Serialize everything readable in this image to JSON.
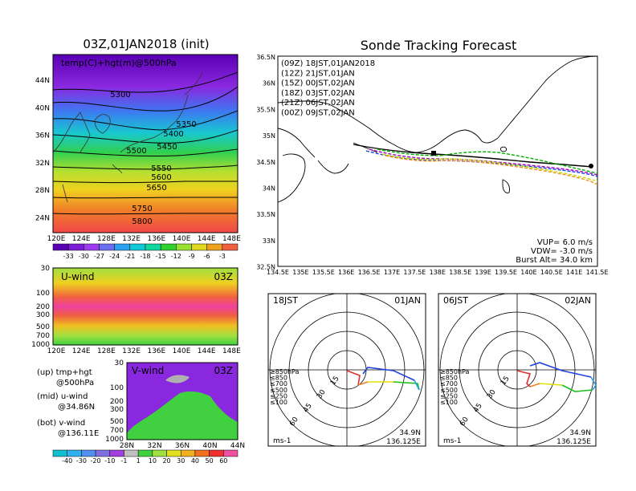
{
  "titles": {
    "map500": "03Z,01JAN2018 (init)",
    "main": "Sonde Tracking Forecast"
  },
  "map500": {
    "inner_label": "temp(C)+hgt(m)@500hPa",
    "lon_ticks": [
      "120E",
      "124E",
      "128E",
      "132E",
      "136E",
      "140E",
      "144E",
      "148E"
    ],
    "lat_ticks": [
      "44N",
      "40N",
      "36N",
      "32N",
      "28N",
      "24N"
    ],
    "contour_labels": [
      "5300",
      "5350",
      "5400",
      "5450",
      "5500",
      "5550",
      "5600",
      "5650",
      "5750",
      "5800"
    ],
    "colorbar_labels": [
      "-33",
      "-30",
      "-27",
      "-24",
      "-21",
      "-18",
      "-15",
      "-12",
      "-9",
      "-6",
      "-3"
    ],
    "colorbar_colors": [
      "#5a00b4",
      "#7a1cd6",
      "#9c3cf0",
      "#6a6ef0",
      "#2aa0f0",
      "#10c8d8",
      "#10d6a0",
      "#30d030",
      "#9ae030",
      "#e0d820",
      "#f0a020",
      "#f06040"
    ]
  },
  "uwind": {
    "label": "U-wind",
    "time": "03Z",
    "y_ticks": [
      "30",
      "100",
      "200",
      "300",
      "500",
      "700",
      "1000"
    ],
    "x_ticks": [
      "120E",
      "124E",
      "128E",
      "132E",
      "136E",
      "140E",
      "144E",
      "148E"
    ]
  },
  "vwind": {
    "label": "V-wind",
    "time": "03Z",
    "y_ticks": [
      "30",
      "100",
      "200",
      "300",
      "500",
      "700",
      "1000"
    ],
    "x_ticks": [
      "28N",
      "32N",
      "36N",
      "40N",
      "44N"
    ],
    "colorbar_labels": [
      "-40",
      "-30",
      "-20",
      "-10",
      "-1",
      "1",
      "10",
      "20",
      "30",
      "40",
      "50",
      "60"
    ],
    "colorbar_colors": [
      "#10c0d0",
      "#30b0f0",
      "#5090f0",
      "#8070e0",
      "#a040e0",
      "#c0c0c0",
      "#40d040",
      "#a0e040",
      "#e0e020",
      "#f0b020",
      "#f07020",
      "#f03030",
      "#f050a0"
    ]
  },
  "legend_notes": [
    "(up) tmp+hgt",
    "@500hPa",
    "(mid) u-wind",
    "@34.86N",
    "(bot) v-wind",
    "@136.11E"
  ],
  "tracking": {
    "x_ticks": [
      "134.5E",
      "135E",
      "135.5E",
      "136E",
      "136.5E",
      "137E",
      "137.5E",
      "138E",
      "138.5E",
      "139E",
      "139.5E",
      "140E",
      "140.5E",
      "141E",
      "141.5E"
    ],
    "y_ticks": [
      "36.5N",
      "36N",
      "35.5N",
      "35N",
      "34.5N",
      "34N",
      "33.5N",
      "33N",
      "32.5N"
    ],
    "legend": [
      {
        "text": "(09Z)  18JST,01JAN2018",
        "color": "#000000"
      },
      {
        "text": "(12Z)  21JST,01JAN",
        "color": "#a000c0"
      },
      {
        "text": "(15Z)  00JST,02JAN",
        "color": "#2040e0"
      },
      {
        "text": "(18Z)  03JST,02JAN",
        "color": "#00b000"
      },
      {
        "text": "(21Z)  06JST,02JAN",
        "color": "#c0e000"
      },
      {
        "text": "(00Z)  09JST,02JAN",
        "color": "#f09020"
      }
    ],
    "params": [
      "VUP=  6.0  m/s",
      "VDW=  -3.0  m/s",
      "Burst Alt=  34.0  km"
    ]
  },
  "hodo_left": {
    "time": "18JST",
    "date": "01JAN",
    "rings": [
      "15",
      "30",
      "45",
      "60"
    ],
    "levels": [
      "≥850hPa",
      "≤850",
      "≤700",
      "≤500",
      "≤250",
      "≤100"
    ],
    "unit": "ms-1",
    "lat": "34.9N",
    "lon": "136.125E"
  },
  "hodo_right": {
    "time": "06JST",
    "date": "02JAN",
    "rings": [
      "15",
      "30",
      "45",
      "60"
    ],
    "levels": [
      "≥850hPa",
      "≤850",
      "≤700",
      "≤500",
      "≤250",
      "≤100"
    ],
    "unit": "ms-1",
    "lat": "34.9N",
    "lon": "136.125E"
  },
  "level_colors": [
    "#e03030",
    "#f08020",
    "#e0e000",
    "#20c020",
    "#20a0f0",
    "#2040e0"
  ]
}
